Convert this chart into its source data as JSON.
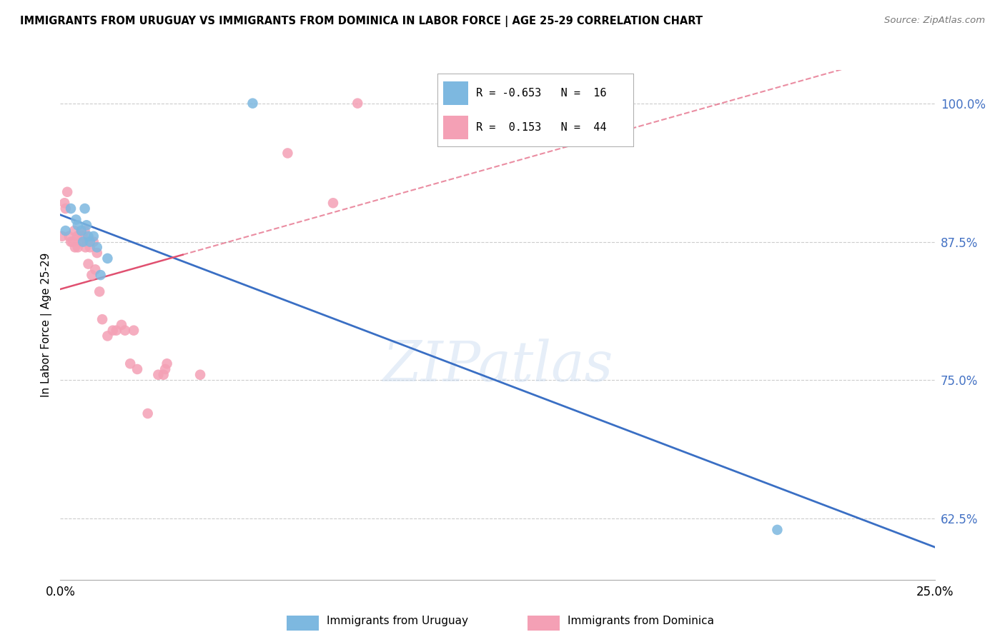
{
  "title": "IMMIGRANTS FROM URUGUAY VS IMMIGRANTS FROM DOMINICA IN LABOR FORCE | AGE 25-29 CORRELATION CHART",
  "source": "Source: ZipAtlas.com",
  "ylabel_label": "In Labor Force | Age 25-29",
  "xmin": 0.0,
  "xmax": 25.0,
  "ymin": 57.0,
  "ymax": 103.0,
  "yticks": [
    62.5,
    75.0,
    87.5,
    100.0
  ],
  "uruguay_color": "#7db8e0",
  "dominica_color": "#f4a0b5",
  "uruguay_line_color": "#3a6fc4",
  "dominica_line_color": "#e05070",
  "uruguay_R": -0.653,
  "uruguay_N": 16,
  "dominica_R": 0.153,
  "dominica_N": 44,
  "uruguay_scatter_x": [
    0.15,
    0.3,
    0.45,
    0.5,
    0.6,
    0.65,
    0.7,
    0.75,
    0.8,
    0.85,
    0.95,
    1.05,
    1.15,
    1.35,
    5.5,
    20.5
  ],
  "uruguay_scatter_y": [
    88.5,
    90.5,
    89.5,
    89.0,
    88.5,
    87.5,
    90.5,
    89.0,
    88.0,
    87.5,
    88.0,
    87.0,
    84.5,
    86.0,
    100.0,
    61.5
  ],
  "dominica_scatter_x": [
    0.05,
    0.12,
    0.15,
    0.2,
    0.25,
    0.3,
    0.35,
    0.4,
    0.42,
    0.48,
    0.5,
    0.55,
    0.6,
    0.65,
    0.7,
    0.72,
    0.78,
    0.8,
    0.85,
    0.9,
    0.95,
    1.0,
    1.05,
    1.12,
    1.2,
    1.35,
    1.5,
    1.6,
    1.75,
    1.85,
    2.0,
    2.1,
    2.2,
    2.5,
    2.8,
    2.95,
    3.0,
    3.05,
    6.5,
    7.8,
    4.0,
    8.5,
    11.0,
    15.5
  ],
  "dominica_scatter_y": [
    88.0,
    91.0,
    90.5,
    92.0,
    88.0,
    87.5,
    87.5,
    88.5,
    87.0,
    88.0,
    87.0,
    88.0,
    87.5,
    88.0,
    88.5,
    87.0,
    87.5,
    85.5,
    87.0,
    84.5,
    87.5,
    85.0,
    86.5,
    83.0,
    80.5,
    79.0,
    79.5,
    79.5,
    80.0,
    79.5,
    76.5,
    79.5,
    76.0,
    72.0,
    75.5,
    75.5,
    76.0,
    76.5,
    95.5,
    91.0,
    75.5,
    100.0,
    100.0,
    100.0
  ],
  "watermark": "ZIPatlas",
  "grid_color": "#cccccc",
  "background_color": "#ffffff",
  "legend_R_u": "R = -0.653",
  "legend_N_u": "N = 16",
  "legend_R_d": "R =  0.153",
  "legend_N_d": "N = 44"
}
